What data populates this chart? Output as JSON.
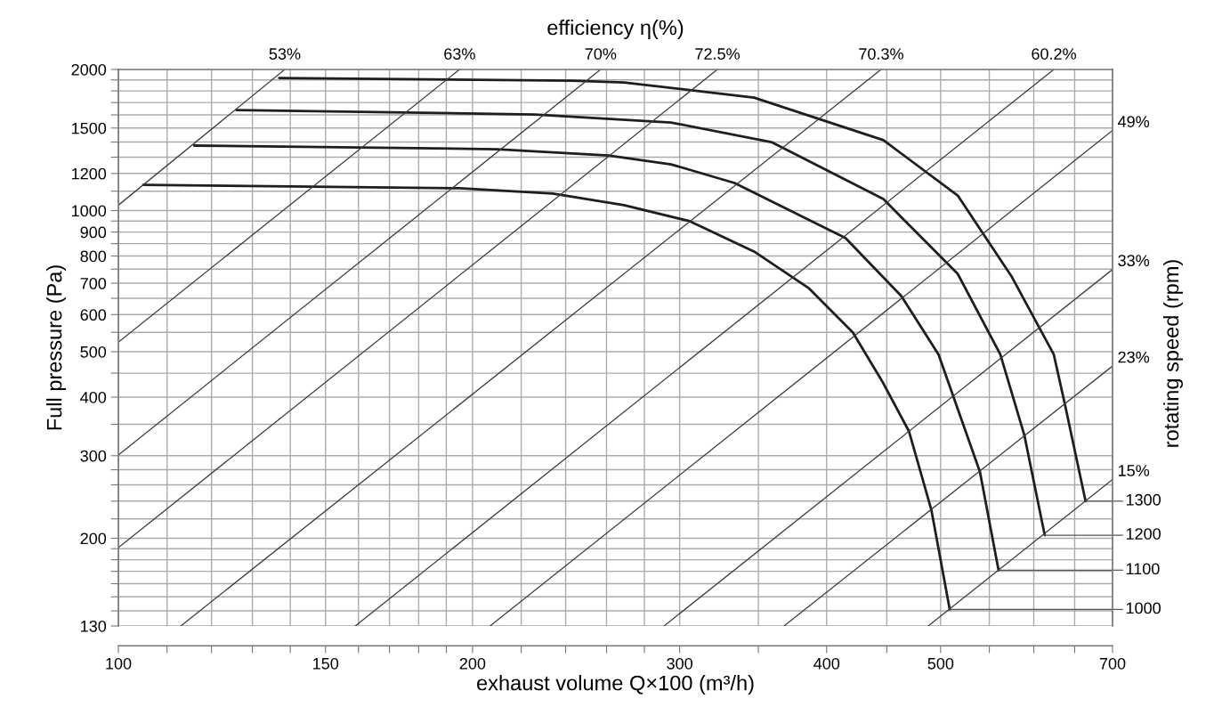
{
  "chart_data": {
    "type": "line",
    "title": "efficiency η(%)",
    "xlabel": "exhaust volume Q×100 (m³/h)",
    "ylabel": "Full pressure (Pa)",
    "y2label": "rotating speed (rpm)",
    "log": "xy",
    "grid": true,
    "legend": false,
    "marker": "none",
    "line_style": "solid",
    "xlim": [
      100,
      700
    ],
    "ylim": [
      130,
      2000
    ],
    "xticks": [
      100,
      {
        "value": 110,
        "label": null
      },
      {
        "value": 120,
        "label": null
      },
      {
        "value": 130,
        "label": null
      },
      {
        "value": 140,
        "label": null
      },
      150,
      {
        "value": 160,
        "label": null
      },
      {
        "value": 170,
        "label": null
      },
      {
        "value": 180,
        "label": null
      },
      {
        "value": 190,
        "label": null
      },
      200,
      {
        "value": 220,
        "label": null
      },
      {
        "value": 240,
        "label": null
      },
      {
        "value": 260,
        "label": null
      },
      {
        "value": 280,
        "label": null
      },
      300,
      {
        "value": 350,
        "label": null
      },
      400,
      {
        "value": 450,
        "label": null
      },
      500,
      {
        "value": 550,
        "label": null
      },
      {
        "value": 600,
        "label": null
      },
      {
        "value": 650,
        "label": null
      },
      700
    ],
    "yticks": [
      130,
      {
        "value": 140,
        "label": null
      },
      {
        "value": 150,
        "label": null
      },
      {
        "value": 160,
        "label": null
      },
      {
        "value": 170,
        "label": null
      },
      {
        "value": 180,
        "label": null
      },
      {
        "value": 190,
        "label": null
      },
      200,
      {
        "value": 220,
        "label": null
      },
      {
        "value": 240,
        "label": null
      },
      {
        "value": 260,
        "label": null
      },
      {
        "value": 280,
        "label": null
      },
      300,
      {
        "value": 350,
        "label": null
      },
      400,
      {
        "value": 450,
        "label": null
      },
      500,
      {
        "value": 550,
        "label": null
      },
      600,
      {
        "value": 650,
        "label": null
      },
      700,
      {
        "value": 750,
        "label": null
      },
      800,
      {
        "value": 850,
        "label": null
      },
      900,
      {
        "value": 950,
        "label": null
      },
      1000,
      {
        "value": 1100,
        "label": null
      },
      1200,
      {
        "value": 1300,
        "label": null
      },
      {
        "value": 1400,
        "label": null
      },
      1500,
      {
        "value": 1600,
        "label": null
      },
      {
        "value": 1700,
        "label": null
      },
      {
        "value": 1800,
        "label": null
      },
      {
        "value": 1900,
        "label": null
      },
      2000
    ],
    "series": [
      {
        "name": "1000",
        "color": "#1e1e1e",
        "x": [
          105,
          146,
          195,
          234,
          269,
          306,
          347,
          386,
          421,
          447,
          470,
          491,
          509
        ],
        "values": [
          1135,
          1125,
          1116,
          1087,
          1027,
          949,
          818,
          684,
          550,
          428,
          338,
          230,
          141
        ]
      },
      {
        "name": "1100",
        "color": "#1e1e1e",
        "x": [
          116,
          210,
          261,
          295,
          334,
          415,
          463,
          498,
          540,
          560
        ],
        "values": [
          1376,
          1352,
          1311,
          1255,
          1145,
          874,
          657,
          493,
          277,
          171
        ]
      },
      {
        "name": "1200",
        "color": "#1e1e1e",
        "x": [
          126,
          226,
          295,
          359,
          447,
          517,
          562,
          589,
          613
        ],
        "values": [
          1639,
          1603,
          1541,
          1400,
          1058,
          733,
          493,
          332,
          203
        ]
      },
      {
        "name": "1300",
        "color": "#1e1e1e",
        "x": [
          137,
          243,
          269,
          347,
          447,
          517,
          575,
          624,
          638,
          664
        ],
        "values": [
          1918,
          1893,
          1876,
          1742,
          1413,
          1077,
          721,
          493,
          384,
          240
        ]
      },
      {
        "name": "53%",
        "color": "#3a3a3a",
        "x": [
          100,
          138.5
        ],
        "values": [
          1027,
          2000
        ]
      },
      {
        "name": "63%",
        "color": "#3a3a3a",
        "x": [
          100,
          195
        ],
        "values": [
          524,
          2000
        ]
      },
      {
        "name": "70%",
        "color": "#3a3a3a",
        "x": [
          100,
          257
        ],
        "values": [
          301,
          2000
        ]
      },
      {
        "name": "72.5%",
        "color": "#3a3a3a",
        "x": [
          100,
          323
        ],
        "values": [
          191,
          2000
        ]
      },
      {
        "name": "70.3%",
        "color": "#3a3a3a",
        "x": [
          113,
          445
        ],
        "values": [
          130,
          2000
        ]
      },
      {
        "name": "60.2%",
        "color": "#3a3a3a",
        "x": [
          159,
          624
        ],
        "values": [
          130,
          2000
        ]
      },
      {
        "name": "49%",
        "color": "#3a3a3a",
        "x": [
          207,
          700
        ],
        "values": [
          130,
          1482
        ]
      },
      {
        "name": "33%",
        "color": "#3a3a3a",
        "x": [
          291,
          700
        ],
        "values": [
          130,
          749
        ]
      },
      {
        "name": "23%",
        "color": "#3a3a3a",
        "x": [
          368,
          700
        ],
        "values": [
          130,
          466
        ]
      },
      {
        "name": "15%",
        "color": "#3a3a3a",
        "x": [
          488,
          700
        ],
        "values": [
          130,
          267
        ]
      }
    ]
  }
}
